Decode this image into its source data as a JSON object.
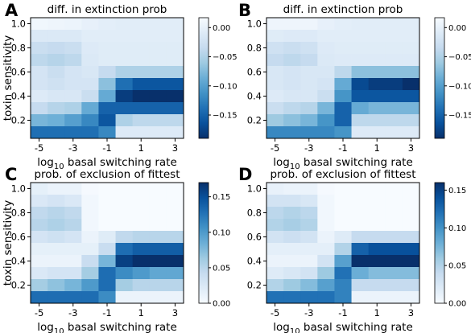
{
  "chart_data": [
    {
      "type": "heatmap",
      "panel_label": "A",
      "title": "diff. in extinction prob",
      "xlabel_base": "log",
      "xlabel_sub": "10",
      "xlabel_rest": " basal switching rate",
      "ylabel": "toxin sensitivity",
      "x_tick_labels": [
        "-5",
        "-3",
        "-1",
        "1",
        "3"
      ],
      "x_tick_columns": [
        0,
        2,
        4,
        6,
        8
      ],
      "y_tick_labels": [
        "0.2",
        "0.4",
        "0.6",
        "0.8",
        "1.0"
      ],
      "y_tick_rows": [
        8,
        6,
        4,
        2,
        0
      ],
      "colorbar_ticks": [
        "0.00",
        "−0.05",
        "−0.10",
        "−0.15"
      ],
      "colorbar_tick_values": [
        0.0,
        -0.05,
        -0.1,
        -0.15
      ],
      "colormap": "Blues_r",
      "vmin": -0.19,
      "vmax": 0.017,
      "rows_top_to_bottom": [
        [
          0.01,
          0.008,
          0.006,
          0.0,
          -0.004,
          -0.006,
          -0.006,
          -0.006,
          -0.006
        ],
        [
          -0.012,
          -0.012,
          -0.012,
          -0.006,
          -0.006,
          -0.006,
          -0.006,
          -0.006,
          -0.006
        ],
        [
          -0.03,
          -0.035,
          -0.03,
          -0.01,
          -0.008,
          -0.008,
          -0.008,
          -0.008,
          -0.008
        ],
        [
          -0.04,
          -0.045,
          -0.04,
          -0.012,
          -0.008,
          -0.008,
          -0.008,
          -0.008,
          -0.008
        ],
        [
          -0.02,
          -0.03,
          -0.02,
          -0.015,
          -0.035,
          -0.05,
          -0.05,
          -0.05,
          -0.05
        ],
        [
          -0.02,
          -0.025,
          -0.02,
          -0.02,
          -0.07,
          -0.14,
          -0.16,
          -0.16,
          -0.16
        ],
        [
          -0.01,
          -0.015,
          -0.015,
          -0.03,
          -0.09,
          -0.18,
          -0.19,
          -0.19,
          -0.19
        ],
        [
          -0.035,
          -0.045,
          -0.05,
          -0.09,
          -0.15,
          -0.15,
          -0.15,
          -0.15,
          -0.15
        ],
        [
          -0.08,
          -0.085,
          -0.1,
          -0.12,
          -0.16,
          -0.05,
          -0.04,
          -0.04,
          -0.04
        ],
        [
          -0.14,
          -0.14,
          -0.14,
          -0.14,
          -0.12,
          -0.01,
          -0.01,
          -0.01,
          -0.01
        ]
      ]
    },
    {
      "type": "heatmap",
      "panel_label": "B",
      "title": "diff. in extinction prob",
      "xlabel_base": "log",
      "xlabel_sub": "10",
      "xlabel_rest": " basal switching rate",
      "ylabel": "",
      "x_tick_labels": [
        "-5",
        "-3",
        "-1",
        "1",
        "3"
      ],
      "x_tick_columns": [
        0,
        2,
        4,
        6,
        8
      ],
      "y_tick_labels": [
        "0.2",
        "0.4",
        "0.6",
        "0.8",
        "1.0"
      ],
      "y_tick_rows": [
        8,
        6,
        4,
        2,
        0
      ],
      "colorbar_ticks": [
        "0.00",
        "−0.05",
        "−0.10",
        "−0.15"
      ],
      "colorbar_tick_values": [
        0.0,
        -0.05,
        -0.1,
        -0.15
      ],
      "colormap": "Blues_r",
      "vmin": -0.19,
      "vmax": 0.017,
      "rows_top_to_bottom": [
        [
          0.008,
          0.008,
          0.008,
          0.0,
          -0.004,
          -0.006,
          -0.006,
          -0.006,
          -0.006
        ],
        [
          -0.008,
          -0.01,
          -0.01,
          -0.006,
          -0.006,
          -0.006,
          -0.006,
          -0.006,
          -0.006
        ],
        [
          -0.025,
          -0.03,
          -0.025,
          -0.01,
          -0.008,
          -0.008,
          -0.008,
          -0.008,
          -0.008
        ],
        [
          -0.035,
          -0.04,
          -0.035,
          -0.012,
          -0.01,
          -0.01,
          -0.01,
          -0.01,
          -0.01
        ],
        [
          -0.015,
          -0.02,
          -0.015,
          -0.015,
          -0.04,
          -0.07,
          -0.07,
          -0.07,
          -0.07
        ],
        [
          -0.015,
          -0.02,
          -0.015,
          -0.02,
          -0.09,
          -0.17,
          -0.18,
          -0.18,
          -0.19
        ],
        [
          -0.01,
          -0.015,
          -0.015,
          -0.03,
          -0.11,
          -0.16,
          -0.16,
          -0.16,
          -0.16
        ],
        [
          -0.03,
          -0.04,
          -0.045,
          -0.08,
          -0.15,
          -0.09,
          -0.08,
          -0.08,
          -0.08
        ],
        [
          -0.06,
          -0.07,
          -0.08,
          -0.11,
          -0.15,
          -0.04,
          -0.04,
          -0.04,
          -0.04
        ],
        [
          -0.12,
          -0.12,
          -0.12,
          -0.12,
          -0.11,
          -0.01,
          -0.01,
          -0.01,
          -0.01
        ]
      ]
    },
    {
      "type": "heatmap",
      "panel_label": "C",
      "title": "prob. of exclusion of fittest",
      "xlabel_base": "log",
      "xlabel_sub": "10",
      "xlabel_rest": " basal switching rate",
      "ylabel": "toxin sensitivity",
      "x_tick_labels": [
        "-5",
        "-3",
        "-1",
        "1",
        "3"
      ],
      "x_tick_columns": [
        0,
        2,
        4,
        6,
        8
      ],
      "y_tick_labels": [
        "0.2",
        "0.4",
        "0.6",
        "0.8",
        "1.0"
      ],
      "y_tick_rows": [
        8,
        6,
        4,
        2,
        0
      ],
      "colorbar_ticks": [
        "0.15",
        "0.10",
        "0.05",
        "0.00"
      ],
      "colorbar_tick_values": [
        0.15,
        0.1,
        0.05,
        0.0
      ],
      "colormap": "Blues",
      "vmin": 0.0,
      "vmax": 0.17,
      "rows_top_to_bottom": [
        [
          0.015,
          0.01,
          0.01,
          0.002,
          0.0,
          0.0,
          0.0,
          0.0,
          0.0
        ],
        [
          0.025,
          0.03,
          0.025,
          0.005,
          0.0,
          0.0,
          0.0,
          0.0,
          0.0
        ],
        [
          0.045,
          0.05,
          0.045,
          0.005,
          0.0,
          0.0,
          0.0,
          0.0,
          0.0
        ],
        [
          0.05,
          0.055,
          0.05,
          0.005,
          0.0,
          0.0,
          0.0,
          0.0,
          0.0
        ],
        [
          0.03,
          0.035,
          0.03,
          0.01,
          0.02,
          0.045,
          0.05,
          0.05,
          0.05
        ],
        [
          0.015,
          0.015,
          0.015,
          0.015,
          0.04,
          0.13,
          0.14,
          0.14,
          0.14
        ],
        [
          0.01,
          0.01,
          0.01,
          0.04,
          0.08,
          0.16,
          0.17,
          0.17,
          0.17
        ],
        [
          0.025,
          0.03,
          0.03,
          0.06,
          0.13,
          0.11,
          0.1,
          0.09,
          0.09
        ],
        [
          0.06,
          0.07,
          0.08,
          0.1,
          0.13,
          0.06,
          0.05,
          0.05,
          0.05
        ],
        [
          0.13,
          0.13,
          0.13,
          0.13,
          0.11,
          0.01,
          0.01,
          0.01,
          0.01
        ]
      ]
    },
    {
      "type": "heatmap",
      "panel_label": "D",
      "title": "prob. of exclusion of fittest",
      "xlabel_base": "log",
      "xlabel_sub": "10",
      "xlabel_rest": " basal switching rate",
      "ylabel": "",
      "x_tick_labels": [
        "-5",
        "-3",
        "-1",
        "1",
        "3"
      ],
      "x_tick_columns": [
        0,
        2,
        4,
        6,
        8
      ],
      "y_tick_labels": [
        "0.2",
        "0.4",
        "0.6",
        "0.8",
        "1.0"
      ],
      "y_tick_rows": [
        8,
        6,
        4,
        2,
        0
      ],
      "colorbar_ticks": [
        "0.15",
        "0.10",
        "0.05",
        "0.00"
      ],
      "colorbar_tick_values": [
        0.15,
        0.1,
        0.05,
        0.0
      ],
      "colormap": "Blues",
      "vmin": 0.0,
      "vmax": 0.16,
      "rows_top_to_bottom": [
        [
          0.012,
          0.01,
          0.01,
          0.002,
          0.0,
          0.0,
          0.0,
          0.0,
          0.0
        ],
        [
          0.03,
          0.03,
          0.025,
          0.005,
          0.0,
          0.0,
          0.0,
          0.0,
          0.0
        ],
        [
          0.045,
          0.05,
          0.045,
          0.005,
          0.0,
          0.0,
          0.0,
          0.0,
          0.0
        ],
        [
          0.05,
          0.055,
          0.05,
          0.005,
          0.0,
          0.0,
          0.0,
          0.0,
          0.0
        ],
        [
          0.03,
          0.035,
          0.03,
          0.01,
          0.02,
          0.04,
          0.04,
          0.04,
          0.04
        ],
        [
          0.015,
          0.015,
          0.015,
          0.015,
          0.05,
          0.13,
          0.14,
          0.14,
          0.14
        ],
        [
          0.01,
          0.01,
          0.01,
          0.03,
          0.09,
          0.16,
          0.16,
          0.16,
          0.16
        ],
        [
          0.02,
          0.025,
          0.03,
          0.06,
          0.12,
          0.08,
          0.07,
          0.07,
          0.07
        ],
        [
          0.05,
          0.06,
          0.07,
          0.09,
          0.11,
          0.04,
          0.04,
          0.04,
          0.04
        ],
        [
          0.12,
          0.12,
          0.12,
          0.12,
          0.11,
          0.01,
          0.01,
          0.01,
          0.01
        ]
      ]
    }
  ]
}
